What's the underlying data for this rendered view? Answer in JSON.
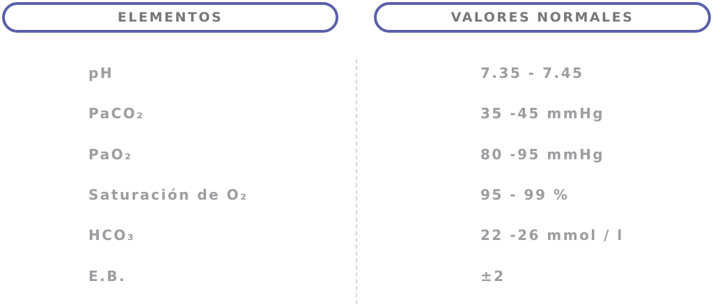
{
  "table": {
    "headers": [
      "ELEMENTOS",
      "VALORES NORMALES"
    ],
    "rows": [
      [
        "pH",
        "7.35 - 7.45"
      ],
      [
        "PaCO₂",
        "35 -45 mmHg"
      ],
      [
        "PaO₂",
        "80 -95 mmHg"
      ],
      [
        "Saturación de O₂",
        "95 - 99 %"
      ],
      [
        "HCO₃",
        "22 -26 mmol / l"
      ],
      [
        "E.B.",
        "±2"
      ]
    ]
  }
}
